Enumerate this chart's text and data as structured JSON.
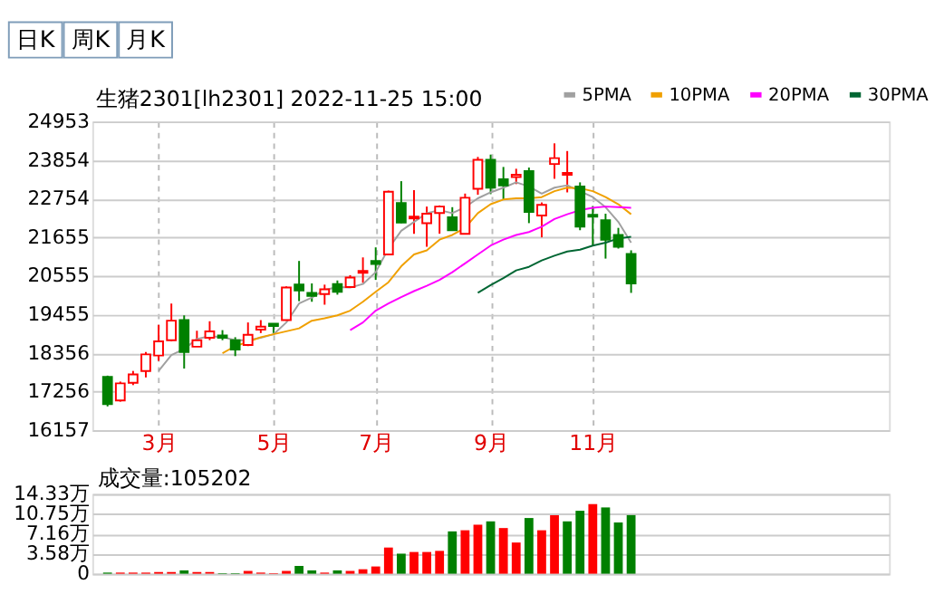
{
  "chart_data": [
    {
      "type": "candlestick",
      "title": "生猪2301[lh2301] 2022-11-25 15:00",
      "annotations": [
        "日K",
        "周K",
        "月K"
      ],
      "categories": [
        null,
        null,
        null,
        null,
        "3月",
        null,
        null,
        null,
        null,
        null,
        null,
        null,
        null,
        "5月",
        null,
        null,
        null,
        null,
        null,
        null,
        null,
        "7月",
        null,
        null,
        null,
        null,
        null,
        null,
        null,
        null,
        "9月",
        null,
        null,
        null,
        null,
        null,
        null,
        null,
        "11月",
        null,
        null,
        null,
        null,
        null,
        null,
        null,
        null,
        null,
        null,
        null,
        null,
        null,
        null,
        null,
        null,
        null,
        null,
        null,
        null,
        null,
        null
      ],
      "ohlc": [
        [
          17674,
          17708,
          16831,
          16899
        ],
        [
          17000,
          17539,
          16966,
          17488
        ],
        [
          17505,
          17842,
          17438,
          17741
        ],
        [
          17842,
          18382,
          17657,
          18314
        ],
        [
          18281,
          19157,
          18129,
          18685
        ],
        [
          18719,
          19763,
          18685,
          19275
        ],
        [
          19291,
          19426,
          17910,
          18382
        ],
        [
          18533,
          18988,
          18533,
          18719
        ],
        [
          18786,
          19258,
          18719,
          18971
        ],
        [
          18853,
          19005,
          18719,
          18786
        ],
        [
          18719,
          18803,
          18264,
          18449
        ],
        [
          18584,
          19224,
          18550,
          18870
        ],
        [
          19022,
          19291,
          18921,
          19106
        ],
        [
          19190,
          19190,
          18921,
          19123
        ],
        [
          19291,
          20252,
          19274,
          20218
        ],
        [
          20302,
          20977,
          19831,
          20134
        ],
        [
          20067,
          20336,
          19814,
          19983
        ],
        [
          20033,
          20302,
          19730,
          20168
        ],
        [
          20319,
          20420,
          20016,
          20100
        ],
        [
          20235,
          20572,
          20218,
          20505
        ],
        [
          20639,
          21078,
          20353,
          20690
        ],
        [
          20977,
          21364,
          20437,
          20892
        ],
        [
          21162,
          22982,
          21145,
          22948
        ],
        [
          22628,
          23251,
          22055,
          22072
        ],
        [
          22190,
          22998,
          21752,
          22240
        ],
        [
          22055,
          22527,
          21381,
          22324
        ],
        [
          22341,
          22560,
          21752,
          22527
        ],
        [
          22223,
          22510,
          21836,
          21853
        ],
        [
          21752,
          22897,
          21735,
          22779
        ],
        [
          23032,
          23942,
          22864,
          23858
        ],
        [
          23858,
          24009,
          22881,
          23066
        ],
        [
          23302,
          23656,
          22729,
          23133
        ],
        [
          23369,
          23605,
          23167,
          23436
        ],
        [
          23538,
          23639,
          22055,
          22375
        ],
        [
          22274,
          22645,
          21650,
          22577
        ],
        [
          23740,
          24329,
          23319,
          23908
        ],
        [
          23436,
          24110,
          22931,
          23487
        ],
        [
          23100,
          23217,
          21853,
          21954
        ],
        [
          22291,
          22543,
          21415,
          22240
        ],
        [
          22139,
          22324,
          21044,
          21583
        ],
        [
          21718,
          21920,
          21330,
          21381
        ],
        [
          21179,
          21280,
          20067,
          20336
        ],
        null,
        null,
        null,
        null,
        null,
        null,
        null,
        null,
        null,
        null,
        null,
        null,
        null,
        null,
        null,
        null,
        null,
        null,
        null
      ],
      "colors": [
        "#008000",
        "#ff0000",
        "#ff0000",
        "#ff0000",
        "#ff0000",
        "#ff0000",
        "#008000",
        "#ff0000",
        "#ff0000",
        "#008000",
        "#008000",
        "#ff0000",
        "#ff0000",
        "#008000",
        "#ff0000",
        "#008000",
        "#008000",
        "#ff0000",
        "#008000",
        "#ff0000",
        "#ff0000",
        "#008000",
        "#ff0000",
        "#008000",
        "#ff0000",
        "#ff0000",
        "#ff0000",
        "#008000",
        "#ff0000",
        "#ff0000",
        "#008000",
        "#008000",
        "#ff0000",
        "#008000",
        "#ff0000",
        "#ff0000",
        "#ff0000",
        "#008000",
        "#008000",
        "#008000",
        "#008000",
        "#008000",
        null,
        null,
        null,
        null,
        null,
        null,
        null,
        null,
        null,
        null,
        null,
        null,
        null,
        null,
        null,
        null,
        null,
        null,
        null
      ],
      "series": [
        {
          "name": "5PMA",
          "type": "line",
          "color": "#a0a0a0",
          "values": [
            null,
            null,
            null,
            null,
            17842,
            18297,
            18466,
            18753,
            18837,
            18803,
            18719,
            18719,
            18786,
            18887,
            19224,
            19763,
            19932,
            20151,
            20235,
            20218,
            20319,
            20656,
            21330,
            21836,
            22089,
            22341,
            22425,
            22341,
            22510,
            22763,
            22931,
            23066,
            23217,
            23100,
            22897,
            23066,
            23133,
            22965,
            22796,
            22510,
            22089,
            21499,
            null,
            null,
            null,
            null,
            null,
            null,
            null,
            null,
            null,
            null,
            null,
            null,
            null,
            null,
            null,
            null,
            null,
            null,
            null
          ]
        },
        {
          "name": "10PMA",
          "type": "line",
          "color": "#f0a000",
          "values": [
            null,
            null,
            null,
            null,
            null,
            null,
            null,
            null,
            null,
            18348,
            18550,
            18668,
            18803,
            18887,
            18971,
            19055,
            19274,
            19342,
            19426,
            19561,
            19814,
            20100,
            20370,
            20825,
            21162,
            21280,
            21583,
            21718,
            21920,
            22341,
            22594,
            22729,
            22763,
            22763,
            22796,
            22965,
            23066,
            23049,
            22965,
            22796,
            22594,
            22308,
            null,
            null,
            null,
            null,
            null,
            null,
            null,
            null,
            null,
            null,
            null,
            null,
            null,
            null,
            null,
            null,
            null,
            null,
            null
          ]
        },
        {
          "name": "20PMA",
          "type": "line",
          "color": "#ff00ff",
          "values": [
            null,
            null,
            null,
            null,
            null,
            null,
            null,
            null,
            null,
            null,
            null,
            null,
            null,
            null,
            null,
            null,
            null,
            null,
            null,
            19005,
            19224,
            19561,
            19763,
            19949,
            20117,
            20269,
            20437,
            20656,
            20909,
            21162,
            21415,
            21583,
            21718,
            21802,
            21954,
            22173,
            22308,
            22425,
            22493,
            22527,
            22510,
            22493,
            null,
            null,
            null,
            null,
            null,
            null,
            null,
            null,
            null,
            null,
            null,
            null,
            null,
            null,
            null,
            null,
            null,
            null,
            null
          ]
        },
        {
          "name": "30PMA",
          "type": "line",
          "color": "#006633",
          "values": [
            null,
            null,
            null,
            null,
            null,
            null,
            null,
            null,
            null,
            null,
            null,
            null,
            null,
            null,
            null,
            null,
            null,
            null,
            null,
            null,
            null,
            null,
            null,
            null,
            null,
            null,
            null,
            null,
            null,
            20067,
            20286,
            20488,
            20707,
            20808,
            20993,
            21128,
            21246,
            21297,
            21415,
            21499,
            21617,
            21667,
            null,
            null,
            null,
            null,
            null,
            null,
            null,
            null,
            null,
            null,
            null,
            null,
            null,
            null,
            null,
            null,
            null,
            null,
            null
          ]
        }
      ],
      "ylim": [
        16157,
        24953
      ],
      "yticks": [
        16157,
        17256,
        18356,
        19455,
        20555,
        21655,
        22754,
        23854,
        24953
      ],
      "grid": true,
      "legend": "top right",
      "marker": "none",
      "line_style": "solid"
    },
    {
      "type": "bar",
      "title": "成交量:105202",
      "categories": [
        null,
        null,
        null,
        null,
        null,
        null,
        null,
        null,
        null,
        null,
        null,
        null,
        null,
        null,
        null,
        null,
        null,
        null,
        null,
        null,
        null,
        null,
        null,
        null,
        null,
        null,
        null,
        null,
        null,
        null,
        null,
        null,
        null,
        null,
        null,
        null,
        null,
        null,
        null,
        null,
        null,
        null,
        null,
        null,
        null,
        null,
        null,
        null,
        null,
        null,
        null,
        null,
        null,
        null,
        null,
        null,
        null,
        null,
        null,
        null,
        null
      ],
      "values": [
        0.2,
        0.2,
        0.2,
        0.2,
        0.3,
        0.3,
        0.6,
        0.3,
        0.3,
        0.1,
        0.1,
        0.5,
        0.2,
        0.1,
        0.5,
        1.4,
        0.6,
        0.2,
        0.6,
        0.5,
        0.8,
        1.3,
        4.7,
        3.6,
        3.9,
        3.9,
        4.1,
        7.6,
        7.8,
        8.8,
        9.4,
        8.2,
        5.6,
        10.0,
        7.8,
        10.5,
        9.4,
        11.3,
        12.5,
        11.9,
        9.2,
        10.52,
        null,
        null,
        null,
        null,
        null,
        null,
        null,
        null,
        null,
        null,
        null,
        null,
        null,
        null,
        null,
        null,
        null,
        null,
        null
      ],
      "colors": [
        "#008000",
        "#ff0000",
        "#ff0000",
        "#ff0000",
        "#ff0000",
        "#ff0000",
        "#008000",
        "#ff0000",
        "#ff0000",
        "#008000",
        "#008000",
        "#ff0000",
        "#ff0000",
        "#ff0000",
        "#ff0000",
        "#008000",
        "#008000",
        "#ff0000",
        "#008000",
        "#ff0000",
        "#ff0000",
        "#ff0000",
        "#ff0000",
        "#008000",
        "#ff0000",
        "#ff0000",
        "#ff0000",
        "#008000",
        "#ff0000",
        "#ff0000",
        "#008000",
        "#ff0000",
        "#ff0000",
        "#008000",
        "#ff0000",
        "#ff0000",
        "#008000",
        "#008000",
        "#ff0000",
        "#008000",
        "#008000",
        "#008000",
        null,
        null,
        null,
        null,
        null,
        null,
        null,
        null,
        null,
        null,
        null,
        null,
        null,
        null,
        null,
        null,
        null,
        null,
        null
      ],
      "ylim": [
        0,
        14.33
      ],
      "yticks": [
        0,
        {
          "value": 3.58,
          "label": "3.58万"
        },
        {
          "value": 7.16,
          "label": "7.16万"
        },
        {
          "value": 10.75,
          "label": "10.75万"
        },
        {
          "value": 14.33,
          "label": "14.33万"
        }
      ],
      "grid": true,
      "tick_labels": "y"
    }
  ]
}
